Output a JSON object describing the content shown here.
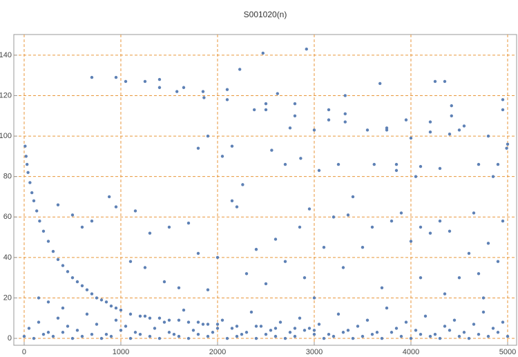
{
  "chart_data": {
    "type": "scatter",
    "title": "S001020(n)",
    "color": "#5e81b5",
    "grid": true,
    "grid_color": "#e8963a",
    "xlim": [
      -107,
      5093
    ],
    "ylim": [
      -3.4,
      150.2
    ],
    "xticks": [
      0,
      1000,
      2000,
      3000,
      4000,
      5000
    ],
    "yticks": [
      0,
      20,
      40,
      60,
      80,
      100,
      120,
      140
    ],
    "x": [
      10,
      20,
      30,
      40,
      60,
      80,
      100,
      130,
      160,
      200,
      250,
      300,
      350,
      400,
      450,
      500,
      550,
      600,
      650,
      700,
      750,
      800,
      850,
      900,
      950,
      1000,
      1100,
      1200,
      1300,
      1400,
      1500,
      1600,
      1700,
      1800,
      1900,
      2000,
      2200,
      2400,
      2600,
      2800,
      3000,
      700,
      950,
      1050,
      1250,
      1400,
      1400,
      1580,
      1650,
      1850,
      1860,
      1900,
      1800,
      2100,
      2100,
      2150,
      2050,
      2230,
      2260,
      2380,
      2470,
      2500,
      2500,
      2560,
      2620,
      2700,
      2750,
      2800,
      2800,
      2860,
      2920,
      2950,
      3000,
      3050,
      3150,
      3150,
      3250,
      3320,
      3320,
      3320,
      3400,
      3550,
      3620,
      3680,
      3750,
      3750,
      3850,
      3850,
      3950,
      4000,
      4050,
      4100,
      4200,
      4200,
      4250,
      4300,
      4350,
      4420,
      4420,
      4400,
      4500,
      4550,
      4700,
      4650,
      4800,
      4850,
      4900,
      4950,
      4950,
      5000,
      4990,
      4950,
      880,
      950,
      700,
      1150,
      1300,
      1500,
      1700,
      1800,
      2000,
      2150,
      2200,
      2400,
      2600,
      2850,
      3000,
      3100,
      3200,
      3350,
      3500,
      3600,
      3800,
      3900,
      4000,
      4100,
      4200,
      4300,
      4400,
      4500,
      4600,
      4700,
      4800,
      4900,
      350,
      500,
      600,
      150,
      250,
      400,
      1100,
      1250,
      1450,
      1600,
      1900,
      2300,
      2500,
      2700,
      2900,
      3300,
      3700,
      4100,
      4350,
      4750,
      0,
      100,
      200,
      300,
      400,
      500,
      600,
      700,
      800,
      900,
      1000,
      1100,
      1200,
      1300,
      1400,
      1500,
      1600,
      1700,
      1800,
      1900,
      2000,
      2100,
      2200,
      2300,
      2400,
      2500,
      2600,
      2700,
      2800,
      2900,
      3000,
      3100,
      3200,
      3300,
      3400,
      3500,
      3600,
      3700,
      3800,
      3900,
      4000,
      4100,
      4200,
      4300,
      4400,
      4500,
      4600,
      4700,
      4800,
      4900,
      5000,
      50,
      150,
      250,
      350,
      450,
      550,
      650,
      750,
      850,
      950,
      1050,
      1150,
      1250,
      1350,
      1450,
      1550,
      1650,
      1750,
      1850,
      1950,
      2050,
      2150,
      2250,
      2350,
      2450,
      2550,
      2650,
      2750,
      2850,
      2950,
      3050,
      3150,
      3250,
      3350,
      3450,
      3550,
      3650,
      3750,
      3850,
      3950,
      4050,
      4150,
      4250,
      4350,
      4450,
      4550,
      4650,
      4750,
      4850,
      4950
    ],
    "values": [
      95,
      90,
      86,
      82,
      77,
      72,
      68,
      63,
      58,
      53,
      48,
      43,
      39,
      36,
      33,
      30,
      28,
      26,
      24,
      22,
      20,
      19,
      18,
      16,
      15,
      14,
      12,
      11,
      10,
      10,
      9,
      9,
      8,
      8,
      7,
      7,
      6,
      6,
      5,
      5,
      4,
      129,
      129,
      127,
      127,
      128,
      124,
      122,
      124,
      122,
      119,
      100,
      94,
      123,
      118,
      95,
      90,
      133,
      76,
      113,
      141,
      116,
      113,
      93,
      121,
      86,
      104,
      116,
      110,
      89,
      143,
      64,
      103,
      83,
      113,
      108,
      86,
      120,
      111,
      107,
      70,
      103,
      86,
      126,
      104,
      103,
      86,
      83,
      108,
      99,
      80,
      85,
      107,
      102,
      127,
      84,
      127,
      115,
      110,
      101,
      103,
      105,
      86,
      62,
      100,
      80,
      86,
      118,
      113,
      96,
      94,
      58,
      70,
      65,
      58,
      63,
      52,
      55,
      57,
      42,
      40,
      68,
      65,
      44,
      49,
      55,
      20,
      45,
      60,
      61,
      45,
      55,
      58,
      62,
      48,
      55,
      52,
      58,
      53,
      30,
      42,
      32,
      47,
      38,
      66,
      61,
      55,
      20,
      18,
      15,
      38,
      35,
      28,
      25,
      24,
      32,
      27,
      38,
      30,
      35,
      25,
      30,
      22,
      20,
      1,
      0,
      2,
      1,
      3,
      0,
      1,
      2,
      0,
      1,
      4,
      0,
      2,
      1,
      0,
      3,
      1,
      0,
      2,
      1,
      5,
      0,
      1,
      3,
      0,
      2,
      1,
      0,
      1,
      4,
      2,
      0,
      1,
      3,
      0,
      1,
      2,
      0,
      3,
      1,
      0,
      2,
      1,
      0,
      4,
      1,
      0,
      2,
      1,
      3,
      1,
      5,
      8,
      3,
      10,
      6,
      4,
      12,
      7,
      2,
      9,
      6,
      3,
      11,
      5,
      8,
      2,
      14,
      4,
      7,
      3,
      9,
      5,
      2,
      13,
      6,
      4,
      8,
      3,
      10,
      5,
      7,
      2,
      12,
      4,
      6,
      9,
      3,
      15,
      5,
      8,
      4,
      11,
      2,
      6,
      9,
      3,
      7,
      13,
      5,
      8
    ]
  }
}
